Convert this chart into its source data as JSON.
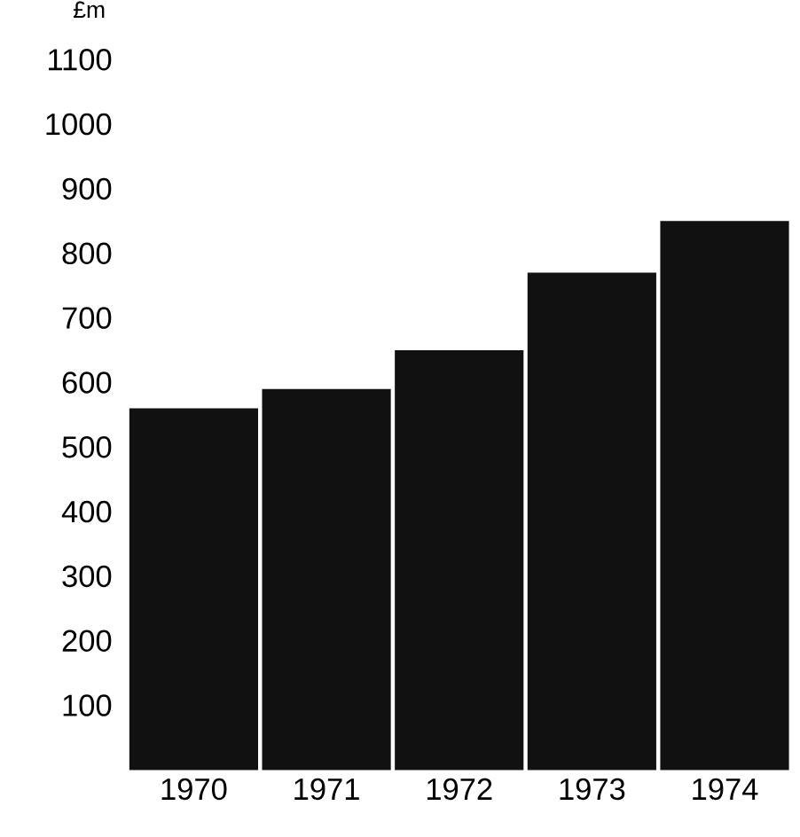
{
  "chart_data": {
    "type": "bar",
    "ylabel": "£m",
    "categories": [
      "1970",
      "1971",
      "1972",
      "1973",
      "1974"
    ],
    "values": [
      560,
      590,
      650,
      770,
      850
    ],
    "color": "#111111",
    "ylim": [
      0,
      1100
    ],
    "yticks": [
      100,
      200,
      300,
      400,
      500,
      600,
      700,
      800,
      900,
      1000,
      1100
    ]
  }
}
